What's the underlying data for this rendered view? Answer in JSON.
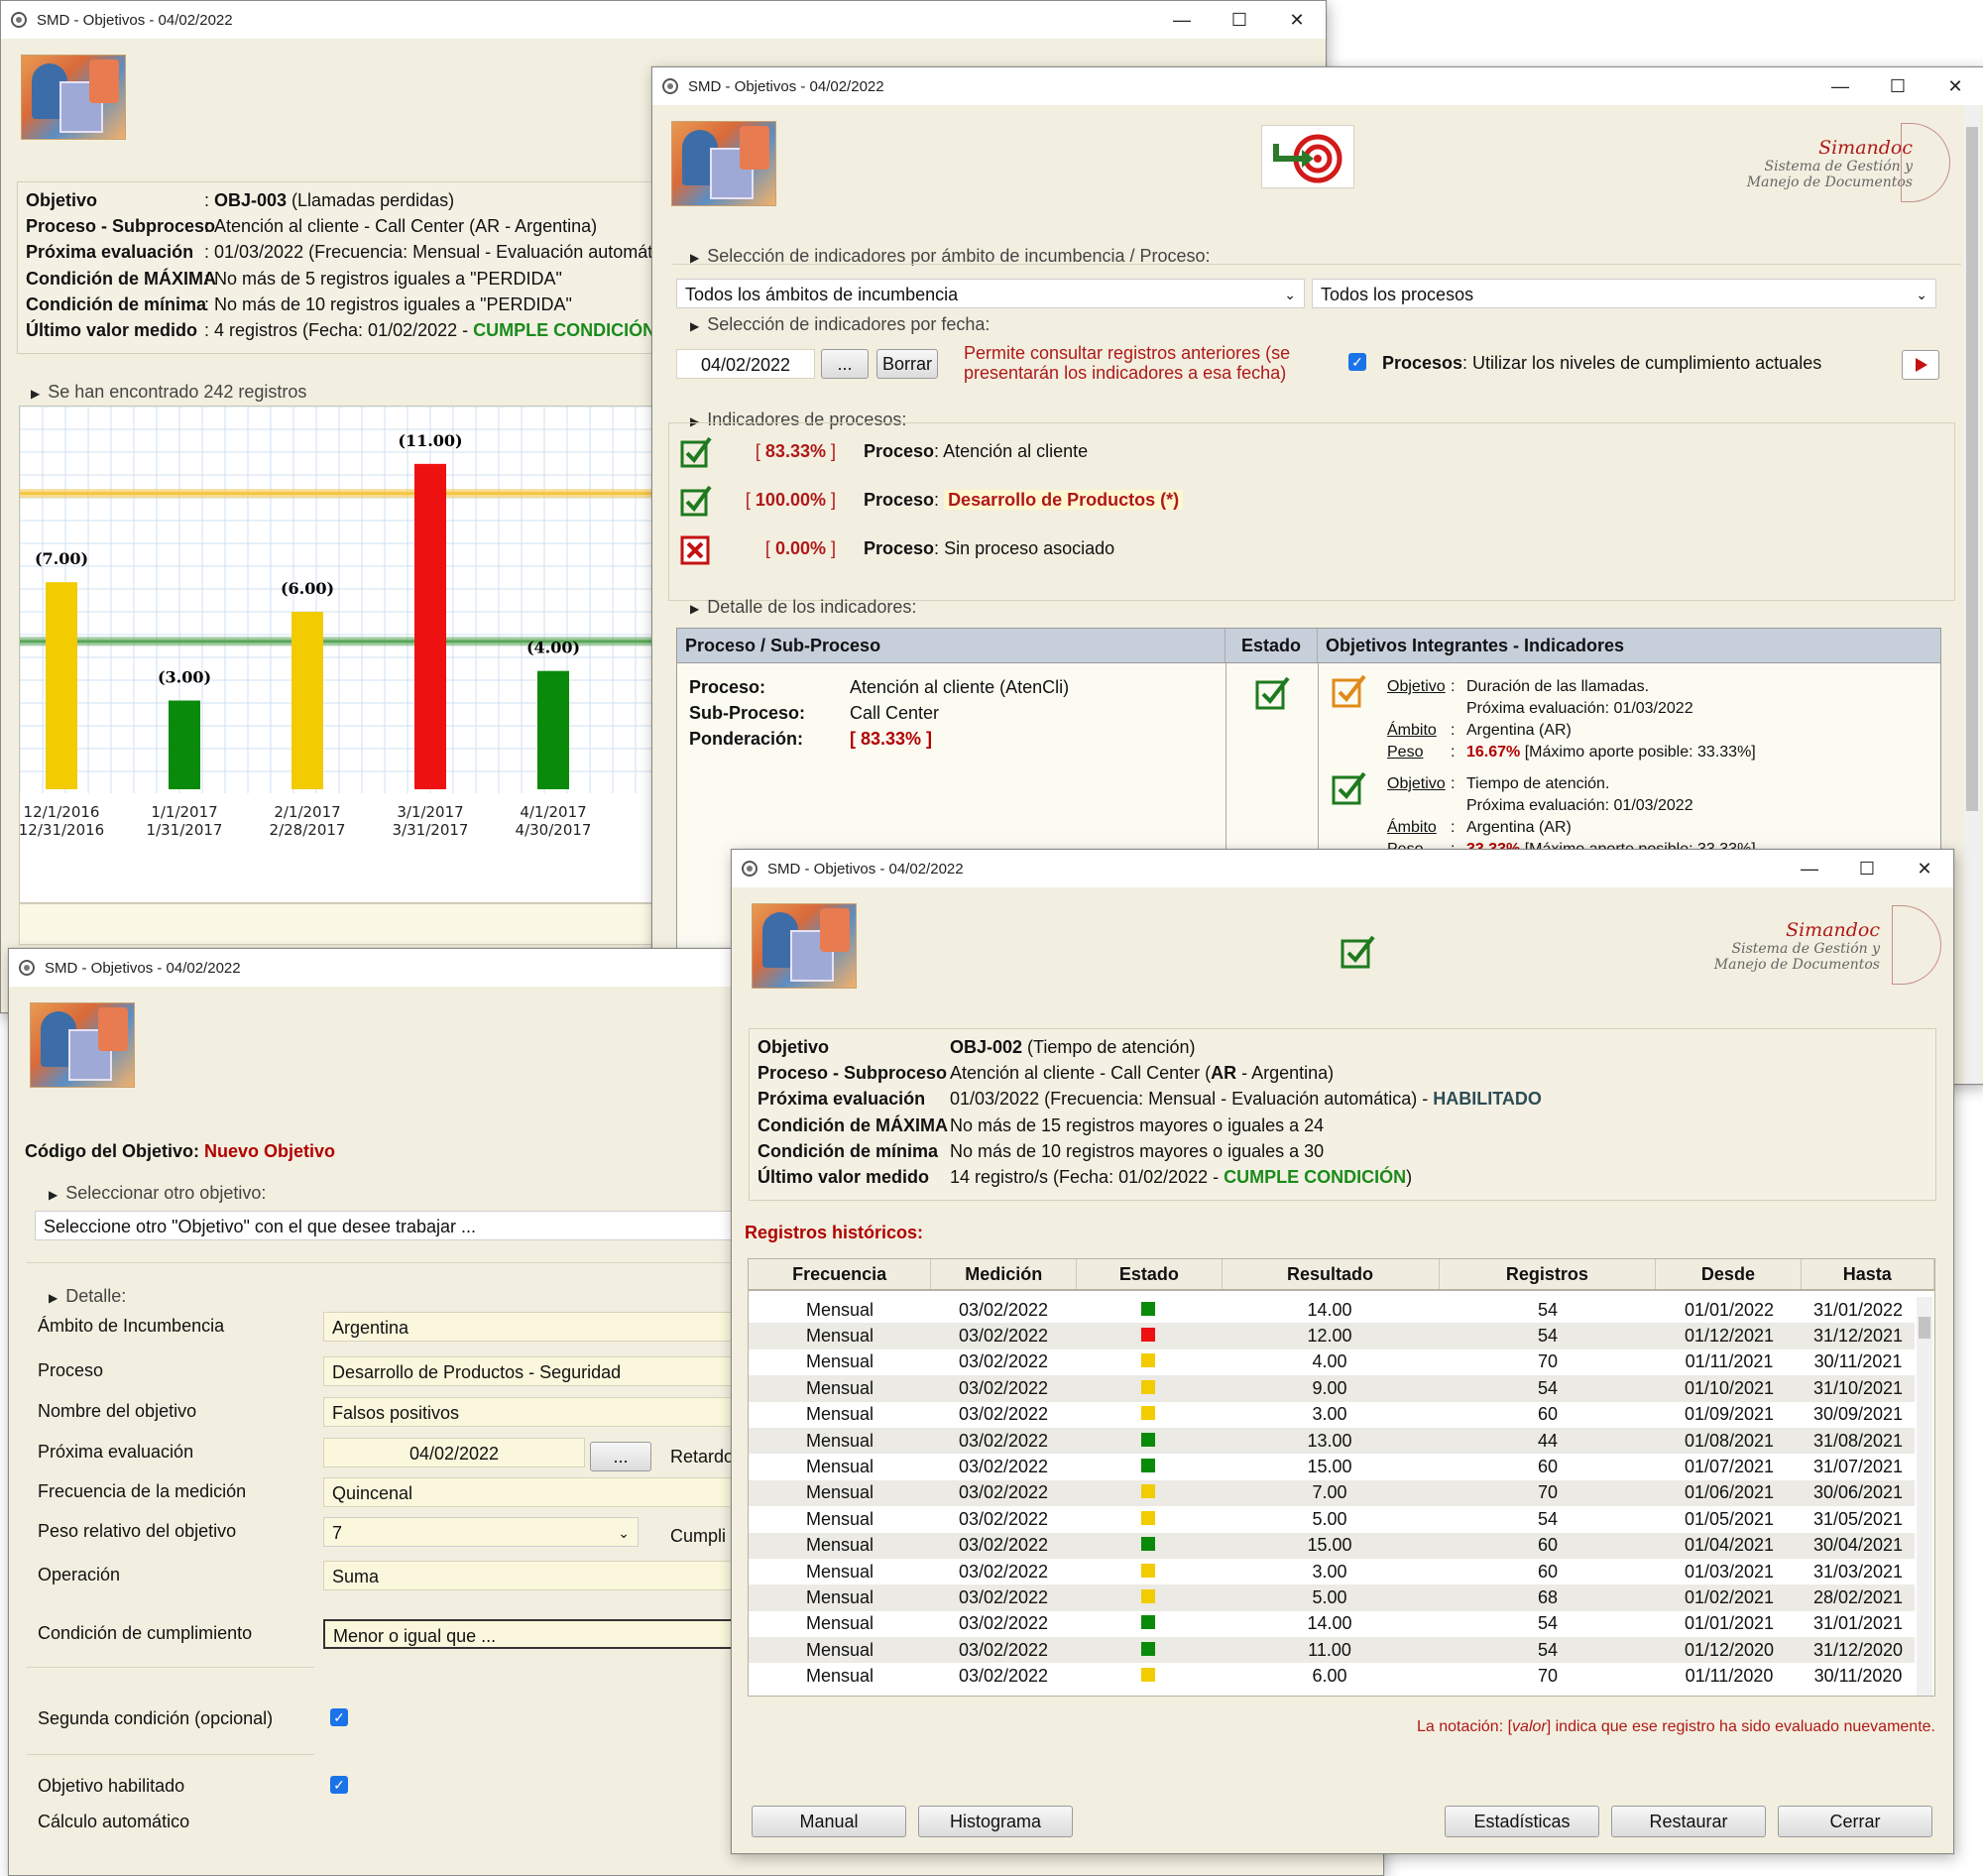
{
  "windows": {
    "chart": {
      "title": "SMD - Objetivos - 04/02/2022",
      "info": [
        {
          "label": "Objetivo",
          "value_bold": "OBJ-003",
          "value": " (Llamadas perdidas)"
        },
        {
          "label": "Proceso - Subproceso",
          "value": "Atención al cliente - Call Center (AR - Argentina)"
        },
        {
          "label": "Próxima evaluación",
          "value": "01/03/2022 (Frecuencia: Mensual - Evaluación automática)"
        },
        {
          "label": "Condición de MÁXIMA",
          "value": "No más de 5 registros iguales a \"PERDIDA\""
        },
        {
          "label": "Condición de mínima",
          "value": "No más de 10 registros iguales a \"PERDIDA\""
        },
        {
          "label": "Último valor medido",
          "value": "4 registros (Fecha: 01/02/2022 - ",
          "status": "CUMPLE CONDICIÓN"
        }
      ],
      "found": "Se han encontrado 242 registros"
    },
    "indicators": {
      "title": "SMD - Objetivos - 04/02/2022",
      "brand": {
        "name": "Simandoc",
        "line1": "Sistema de Gestión y",
        "line2": "Manejo de Documentos"
      },
      "sel_scope_head": "Selección de indicadores por ámbito de incumbencia / Proceso:",
      "scope_select": "Todos los ámbitos de incumbencia",
      "process_select": "Todos los procesos",
      "sel_date_head": "Selección de indicadores por fecha:",
      "date_value": "04/02/2022",
      "dots": "...",
      "clear_btn": "Borrar",
      "date_note_1": "Permite consultar registros anteriores (se",
      "date_note_2": "presentarán los indicadores a esa fecha)",
      "procesos_label": "Procesos",
      "procesos_note": ": Utilizar los niveles de cumplimiento actuales",
      "ind_head": "Indicadores de procesos:",
      "indicators": [
        {
          "pct": "83.33%",
          "label": "Proceso",
          "name": "Atención al cliente",
          "ok": true
        },
        {
          "pct": "100.00%",
          "label": "Proceso",
          "name": "Desarrollo de Productos  (*)",
          "ok": true,
          "highlight": true
        },
        {
          "pct": "0.00%",
          "label": "Proceso",
          "name": "Sin proceso asociado",
          "ok": false
        }
      ],
      "detail_head": "Detalle de los indicadores:",
      "cols": {
        "c1": "Proceso / Sub-Proceso",
        "c2": "Estado",
        "c3": "Objetivos Integrantes - Indicadores"
      },
      "detail": {
        "proceso_lbl": "Proceso:",
        "proceso_val": "Atención al cliente (AtenCli)",
        "sub_lbl": "Sub-Proceso:",
        "sub_val": "Call Center",
        "pond_lbl": "Ponderación:",
        "pond_val": "[ 83.33% ]"
      },
      "objectives": [
        {
          "obj_lbl": "Objetivo",
          "obj": "Duración de las llamadas.",
          "next": "Próxima evaluación: 01/03/2022",
          "amb_lbl": "Ámbito",
          "amb": "Argentina (AR)",
          "peso_lbl": "Peso",
          "peso": "16.67%",
          "max": "[Máximo aporte posible: 33.33%]"
        },
        {
          "obj_lbl": "Objetivo",
          "obj": "Tiempo de atención.",
          "next": "Próxima evaluación: 01/03/2022",
          "amb_lbl": "Ámbito",
          "amb": "Argentina (AR)",
          "peso_lbl": "Peso",
          "peso": "33.33%",
          "max": "[Máximo aporte posible: 33.33%]"
        }
      ]
    },
    "form": {
      "title": "SMD - Objetivos - 04/02/2022",
      "code_label": "Código del Objetivo:",
      "code_value": "Nuevo Objetivo",
      "select_head": "Seleccionar otro objetivo:",
      "select_value": "Seleccione otro \"Objetivo\" con el que desee trabajar ...",
      "detail_head": "Detalle:",
      "fields": [
        {
          "label": "Ámbito de Incumbencia",
          "value": "Argentina"
        },
        {
          "label": "Proceso",
          "value": "Desarrollo de Productos - Seguridad"
        },
        {
          "label": "Nombre del objetivo",
          "value": "Falsos positivos"
        },
        {
          "label": "Próxima evaluación",
          "value": "04/02/2022"
        },
        {
          "label": "Frecuencia de la medición",
          "value": "Quincenal"
        },
        {
          "label": "Peso relativo del objetivo",
          "value": "7"
        },
        {
          "label": "Operación",
          "value": "Suma"
        },
        {
          "label": "Condición de cumplimiento",
          "value": "Menor o igual que ..."
        }
      ],
      "retardo": "Retardo",
      "cumpli": "Cumpli",
      "second_cond": "Segunda condición (opcional)",
      "enabled": "Objetivo habilitado",
      "auto_calc": "Cálculo automático"
    },
    "history": {
      "title": "SMD - Objetivos - 04/02/2022",
      "brand": {
        "name": "Simandoc",
        "line1": "Sistema de Gestión y",
        "line2": "Manejo de Documentos"
      },
      "info": [
        {
          "label": "Objetivo",
          "value_bold": "OBJ-002",
          "value": " (Tiempo de atención)"
        },
        {
          "label": "Proceso - Subproceso",
          "value": "Atención al cliente - Call Center (",
          "value_bold2": "AR",
          "value2": " - Argentina)"
        },
        {
          "label": "Próxima evaluación",
          "value": "01/03/2022 (Frecuencia: Mensual - Evaluación automática) - ",
          "status_bold": "HABILITADO"
        },
        {
          "label": "Condición de MÁXIMA",
          "value": "No más de 15 registros mayores o iguales a 24"
        },
        {
          "label": "Condición de mínima",
          "value": "No más de 10 registros mayores o iguales a 30"
        },
        {
          "label": "Último valor medido",
          "value": "14 registro/s (Fecha: 01/02/2022 - ",
          "status": "CUMPLE CONDICIÓN",
          "tail": ")"
        }
      ],
      "records_head": "Registros históricos:",
      "columns": [
        "Frecuencia",
        "Medición",
        "Estado",
        "Resultado",
        "Registros",
        "Desde",
        "Hasta"
      ],
      "rows": [
        [
          "Mensual",
          "03/02/2022",
          "green",
          "14.00",
          "54",
          "01/01/2022",
          "31/01/2022"
        ],
        [
          "Mensual",
          "03/02/2022",
          "red",
          "12.00",
          "54",
          "01/12/2021",
          "31/12/2021"
        ],
        [
          "Mensual",
          "03/02/2022",
          "yellow",
          "4.00",
          "70",
          "01/11/2021",
          "30/11/2021"
        ],
        [
          "Mensual",
          "03/02/2022",
          "yellow",
          "9.00",
          "54",
          "01/10/2021",
          "31/10/2021"
        ],
        [
          "Mensual",
          "03/02/2022",
          "yellow",
          "3.00",
          "60",
          "01/09/2021",
          "30/09/2021"
        ],
        [
          "Mensual",
          "03/02/2022",
          "green",
          "13.00",
          "44",
          "01/08/2021",
          "31/08/2021"
        ],
        [
          "Mensual",
          "03/02/2022",
          "green",
          "15.00",
          "60",
          "01/07/2021",
          "31/07/2021"
        ],
        [
          "Mensual",
          "03/02/2022",
          "yellow",
          "7.00",
          "70",
          "01/06/2021",
          "30/06/2021"
        ],
        [
          "Mensual",
          "03/02/2022",
          "yellow",
          "5.00",
          "54",
          "01/05/2021",
          "31/05/2021"
        ],
        [
          "Mensual",
          "03/02/2022",
          "green",
          "15.00",
          "60",
          "01/04/2021",
          "30/04/2021"
        ],
        [
          "Mensual",
          "03/02/2022",
          "yellow",
          "3.00",
          "60",
          "01/03/2021",
          "31/03/2021"
        ],
        [
          "Mensual",
          "03/02/2022",
          "yellow",
          "5.00",
          "68",
          "01/02/2021",
          "28/02/2021"
        ],
        [
          "Mensual",
          "03/02/2022",
          "green",
          "14.00",
          "54",
          "01/01/2021",
          "31/01/2021"
        ],
        [
          "Mensual",
          "03/02/2022",
          "green",
          "11.00",
          "54",
          "01/12/2020",
          "31/12/2020"
        ],
        [
          "Mensual",
          "03/02/2022",
          "yellow",
          "6.00",
          "70",
          "01/11/2020",
          "30/11/2020"
        ]
      ],
      "note_prefix": "La notación: [",
      "note_em": "valor",
      "note_suffix": "] indica que ese registro ha sido evaluado nuevamente.",
      "buttons": {
        "manual": "Manual",
        "hist": "Histograma",
        "stats": "Estadísticas",
        "restore": "Restaurar",
        "close": "Cerrar"
      }
    }
  },
  "status_colors": {
    "green": "#0a8a0a",
    "red": "#ee1111",
    "yellow": "#f2cc00"
  },
  "chart_data": {
    "type": "bar",
    "categories": [
      "12/1/2016\n12/31/2016",
      "1/1/2017\n1/31/2017",
      "2/1/2017\n2/28/2017",
      "3/1/2017\n3/31/2017",
      "4/1/2017\n4/30/2017"
    ],
    "values": [
      7,
      3,
      6,
      11,
      4
    ],
    "labels": [
      "(7.00)",
      "(3.00)",
      "(6.00)",
      "(11.00)",
      "(4.00)"
    ],
    "colors": [
      "#f2cc00",
      "#0a8a0a",
      "#f2cc00",
      "#ee1111",
      "#0a8a0a"
    ],
    "reference_lines": [
      {
        "value": 10,
        "color": "#f5c542"
      },
      {
        "value": 5,
        "color": "#5aa55a"
      }
    ],
    "ylim": [
      0,
      12
    ],
    "grid": true
  }
}
